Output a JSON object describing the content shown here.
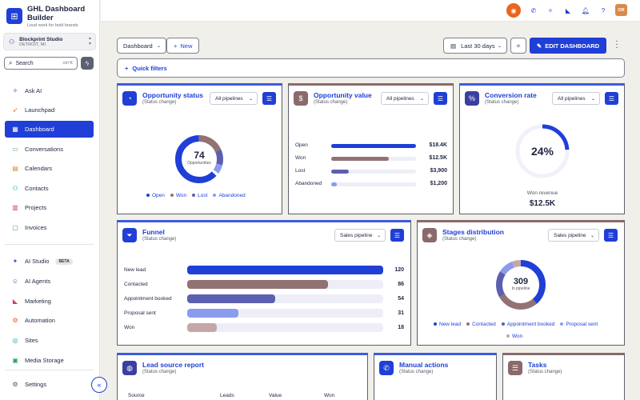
{
  "brand": {
    "title": "GHL Dashboard Builder",
    "tagline": "Loud work for bold brands"
  },
  "location": {
    "name": "Blockprint Studio",
    "city": "DETROIT, MI"
  },
  "search": {
    "label": "Search",
    "shortcut": "ctrl K"
  },
  "nav": [
    {
      "label": "Ask AI",
      "icon": "sparkle-icon"
    },
    {
      "label": "Launchpad",
      "icon": "rocket-icon"
    },
    {
      "label": "Dashboard",
      "icon": "dashboard-icon",
      "active": true
    },
    {
      "label": "Conversations",
      "icon": "chat-icon"
    },
    {
      "label": "Calendars",
      "icon": "calendar-icon"
    },
    {
      "label": "Contacts",
      "icon": "contacts-icon"
    },
    {
      "label": "Projects",
      "icon": "projects-icon"
    },
    {
      "label": "Invoices",
      "icon": "invoice-icon"
    }
  ],
  "nav2": [
    {
      "label": "AI Studio",
      "icon": "ai-studio-icon",
      "badge": "BETA"
    },
    {
      "label": "AI Agents",
      "icon": "robot-icon"
    },
    {
      "label": "Marketing",
      "icon": "megaphone-icon"
    },
    {
      "label": "Automation",
      "icon": "automation-icon"
    },
    {
      "label": "Sites",
      "icon": "sites-icon"
    },
    {
      "label": "Media Storage",
      "icon": "image-icon"
    }
  ],
  "settings": {
    "label": "Settings"
  },
  "topbar": {
    "avatar": "OR"
  },
  "toolbar": {
    "dashboard_select": "Dashboard",
    "new_label": "New",
    "date_range": "Last 30 days",
    "edit_label": "EDIT DASHBOARD",
    "quick_filters": "Quick filters"
  },
  "opportunity_status": {
    "title": "Opportunity status",
    "subtitle": "(Status change)",
    "filter": "All pipelines",
    "total": "74",
    "total_label": "Opportunities",
    "legend": [
      "Open",
      "Won",
      "Lost",
      "Abandoned"
    ]
  },
  "opportunity_value": {
    "title": "Opportunity value",
    "subtitle": "(Status change)",
    "filter": "All pipelines",
    "rows": [
      {
        "label": "Open",
        "value": "$18.4K"
      },
      {
        "label": "Won",
        "value": "$12.5K"
      },
      {
        "label": "Lost",
        "value": "$3,900"
      },
      {
        "label": "Abandoned",
        "value": "$1,200"
      }
    ]
  },
  "conversion_rate": {
    "title": "Conversion rate",
    "subtitle": "(Status change)",
    "filter": "All pipelines",
    "percent": "24%",
    "caption": "Won revenue",
    "revenue": "$12.5K"
  },
  "funnel": {
    "title": "Funnel",
    "subtitle": "(Status change)",
    "filter": "Sales pipeline",
    "rows": [
      {
        "label": "New lead",
        "value": "120"
      },
      {
        "label": "Contacted",
        "value": "86"
      },
      {
        "label": "Appointment booked",
        "value": "54"
      },
      {
        "label": "Proposal sent",
        "value": "31"
      },
      {
        "label": "Won",
        "value": "18"
      }
    ]
  },
  "stages": {
    "title": "Stages distribution",
    "subtitle": "(Status change)",
    "filter": "Sales pipeline",
    "total": "309",
    "total_label": "In pipeline",
    "legend": [
      "New lead",
      "Contacted",
      "Appointment booked",
      "Proposal sent",
      "Won"
    ]
  },
  "lead_source": {
    "title": "Lead source report",
    "subtitle": "(Status change)",
    "columns": [
      "Source",
      "Leads",
      "Value",
      "Won"
    ]
  },
  "manual_actions": {
    "title": "Manual actions",
    "subtitle": "(Status change)"
  },
  "tasks": {
    "title": "Tasks",
    "subtitle": "(Status change)"
  },
  "colors": {
    "primary": "#1f3fd6",
    "mauve": "#927272",
    "slate": "#5c5fb0",
    "periwinkle": "#8b9bee"
  }
}
